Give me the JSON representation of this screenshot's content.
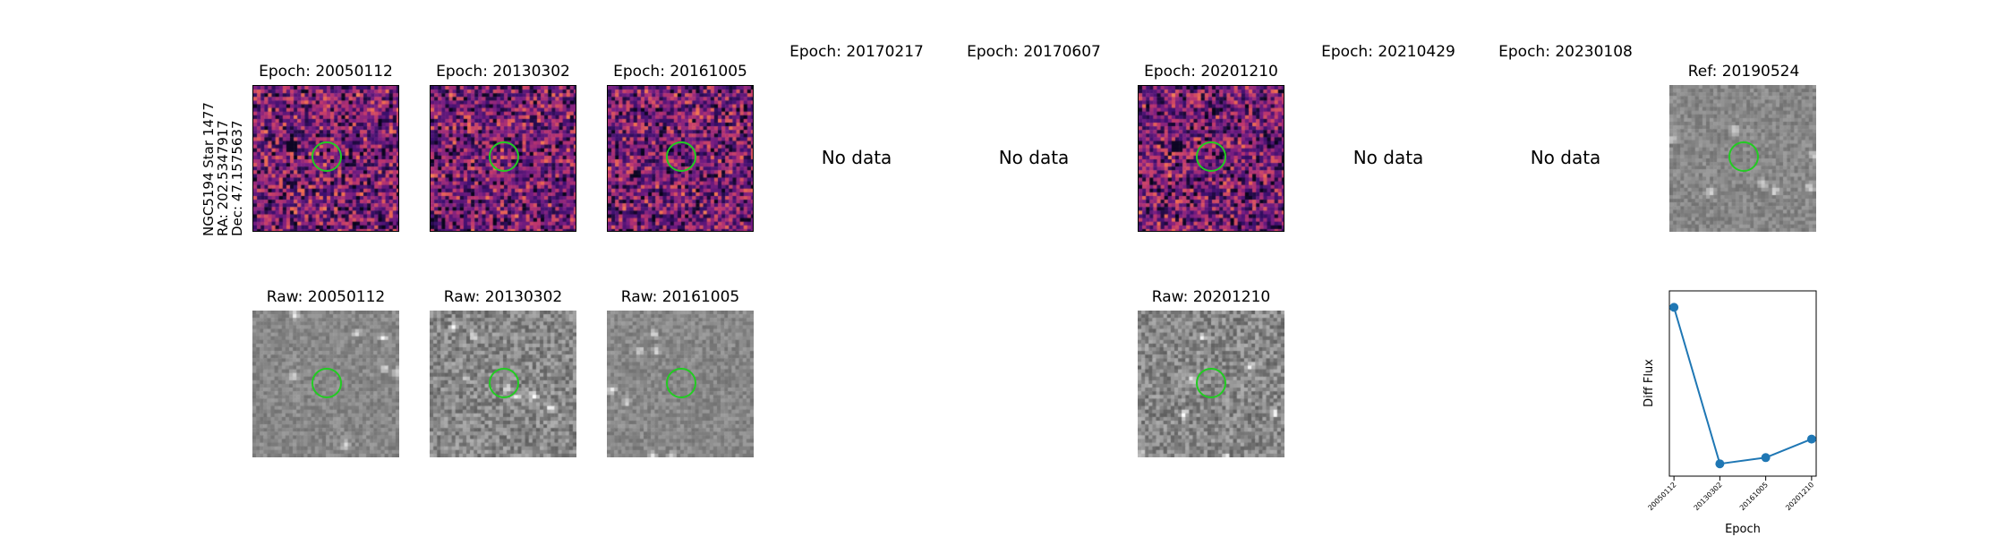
{
  "star_info": {
    "name": "NGC5194 Star 1477",
    "ra": "RA: 202.5347917",
    "dec": "Dec: 47.1575637"
  },
  "epoch_row": [
    {
      "title": "Epoch: 20050112",
      "has_data": true
    },
    {
      "title": "Epoch: 20130302",
      "has_data": true
    },
    {
      "title": "Epoch: 20161005",
      "has_data": true
    },
    {
      "title": "Epoch: 20170217",
      "has_data": false,
      "no_data_text": "No data"
    },
    {
      "title": "Epoch: 20170607",
      "has_data": false,
      "no_data_text": "No data"
    },
    {
      "title": "Epoch: 20201210",
      "has_data": true
    },
    {
      "title": "Epoch: 20210429",
      "has_data": false,
      "no_data_text": "No data"
    },
    {
      "title": "Epoch: 20230108",
      "has_data": false,
      "no_data_text": "No data"
    }
  ],
  "ref": {
    "title": "Ref: 20190524"
  },
  "raw_row": [
    {
      "title": "Raw: 20050112"
    },
    {
      "title": "Raw: 20130302"
    },
    {
      "title": "Raw: 20161005"
    },
    {
      "title": "Raw: 20201210"
    }
  ],
  "colors": {
    "circle": "#22cc22",
    "line": "#1f77b4"
  },
  "chart_data": {
    "type": "line",
    "x": [
      "20050112",
      "20130302",
      "20161005",
      "20201210"
    ],
    "values": [
      0.9,
      0.14,
      0.17,
      0.26
    ],
    "ylim": [
      0.08,
      0.98
    ],
    "xlabel": "Epoch",
    "ylabel": "Diff Flux",
    "grid": false
  }
}
